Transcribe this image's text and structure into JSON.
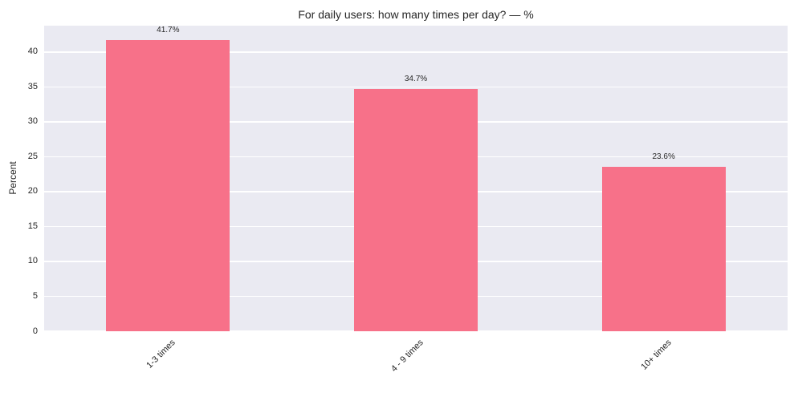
{
  "chart_data": {
    "type": "bar",
    "title": "For daily users: how many times per day? — %",
    "categories": [
      "1-3 times",
      "4 - 9 times",
      "10+ times"
    ],
    "values": [
      41.7,
      34.7,
      23.6
    ],
    "value_labels": [
      "41.7%",
      "34.7%",
      "23.6%"
    ],
    "xlabel": "",
    "ylabel": "Percent",
    "ylim": [
      0,
      43.785
    ],
    "yticks": [
      0,
      5,
      10,
      15,
      20,
      25,
      30,
      35,
      40
    ],
    "x_tick_rotation_deg": 45,
    "grid": "horizontal",
    "legend": false,
    "colors": {
      "bar": "#f77189",
      "plot_background": "#eaeaf2",
      "gridline": "#ffffff",
      "text": "#262626",
      "figure_background": "#ffffff"
    }
  }
}
